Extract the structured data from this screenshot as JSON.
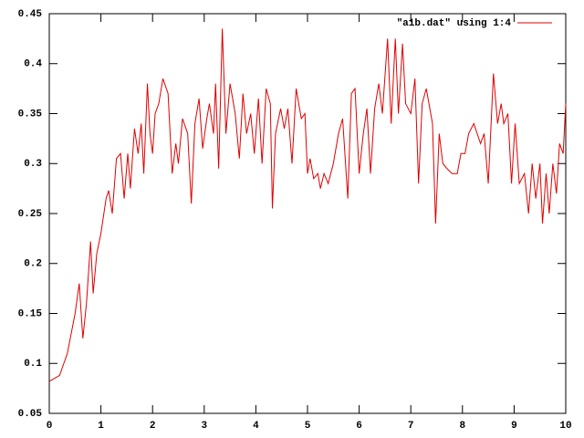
{
  "chart_data": {
    "type": "line",
    "x": [
      0,
      0.2,
      0.35,
      0.5,
      0.58,
      0.65,
      0.72,
      0.8,
      0.85,
      0.92,
      1.0,
      1.1,
      1.15,
      1.22,
      1.3,
      1.38,
      1.45,
      1.52,
      1.57,
      1.65,
      1.72,
      1.78,
      1.83,
      1.9,
      1.95,
      2.0,
      2.05,
      2.12,
      2.2,
      2.3,
      2.38,
      2.45,
      2.5,
      2.58,
      2.68,
      2.75,
      2.82,
      2.9,
      2.97,
      3.05,
      3.1,
      3.18,
      3.22,
      3.28,
      3.35,
      3.42,
      3.5,
      3.6,
      3.68,
      3.75,
      3.82,
      3.9,
      3.97,
      4.05,
      4.12,
      4.2,
      4.28,
      4.32,
      4.38,
      4.48,
      4.55,
      4.62,
      4.7,
      4.78,
      4.88,
      4.95,
      5.0,
      5.05,
      5.12,
      5.2,
      5.25,
      5.32,
      5.4,
      5.5,
      5.6,
      5.68,
      5.78,
      5.85,
      5.92,
      6.0,
      6.08,
      6.15,
      6.22,
      6.3,
      6.38,
      6.45,
      6.55,
      6.62,
      6.7,
      6.76,
      6.84,
      6.9,
      7.0,
      7.08,
      7.15,
      7.22,
      7.3,
      7.42,
      7.48,
      7.55,
      7.62,
      7.7,
      7.8,
      7.9,
      7.97,
      8.05,
      8.12,
      8.22,
      8.35,
      8.42,
      8.5,
      8.6,
      8.68,
      8.75,
      8.8,
      8.88,
      8.95,
      9.02,
      9.1,
      9.2,
      9.28,
      9.35,
      9.42,
      9.5,
      9.55,
      9.62,
      9.68,
      9.75,
      9.82,
      9.88,
      9.95,
      10
    ],
    "series": [
      {
        "name": "\"a1b.dat\" using 1:4",
        "color": "#e00000",
        "values": [
          0.082,
          0.088,
          0.11,
          0.15,
          0.18,
          0.125,
          0.16,
          0.222,
          0.17,
          0.21,
          0.23,
          0.265,
          0.273,
          0.25,
          0.305,
          0.31,
          0.265,
          0.31,
          0.275,
          0.335,
          0.31,
          0.34,
          0.29,
          0.38,
          0.33,
          0.31,
          0.35,
          0.36,
          0.385,
          0.37,
          0.29,
          0.32,
          0.3,
          0.345,
          0.33,
          0.26,
          0.34,
          0.365,
          0.315,
          0.345,
          0.36,
          0.33,
          0.38,
          0.295,
          0.435,
          0.33,
          0.38,
          0.35,
          0.305,
          0.37,
          0.33,
          0.35,
          0.31,
          0.365,
          0.3,
          0.375,
          0.36,
          0.255,
          0.33,
          0.355,
          0.335,
          0.355,
          0.3,
          0.375,
          0.345,
          0.35,
          0.29,
          0.305,
          0.285,
          0.29,
          0.275,
          0.29,
          0.28,
          0.3,
          0.33,
          0.345,
          0.265,
          0.37,
          0.375,
          0.29,
          0.33,
          0.355,
          0.29,
          0.355,
          0.38,
          0.35,
          0.425,
          0.34,
          0.425,
          0.35,
          0.42,
          0.36,
          0.35,
          0.385,
          0.28,
          0.36,
          0.375,
          0.34,
          0.24,
          0.33,
          0.3,
          0.295,
          0.29,
          0.29,
          0.31,
          0.31,
          0.33,
          0.34,
          0.32,
          0.33,
          0.28,
          0.39,
          0.34,
          0.36,
          0.34,
          0.35,
          0.28,
          0.34,
          0.28,
          0.29,
          0.25,
          0.3,
          0.265,
          0.3,
          0.24,
          0.29,
          0.25,
          0.3,
          0.27,
          0.32,
          0.31,
          0.36
        ]
      }
    ],
    "xlim": [
      0,
      10
    ],
    "xticks": [
      0,
      1,
      2,
      3,
      4,
      5,
      6,
      7,
      8,
      9,
      10
    ],
    "ylim": [
      0.05,
      0.45
    ],
    "yticks": [
      0.05,
      0.1,
      0.15,
      0.2,
      0.25,
      0.3,
      0.35,
      0.4,
      0.45
    ],
    "legend": "top-right"
  }
}
